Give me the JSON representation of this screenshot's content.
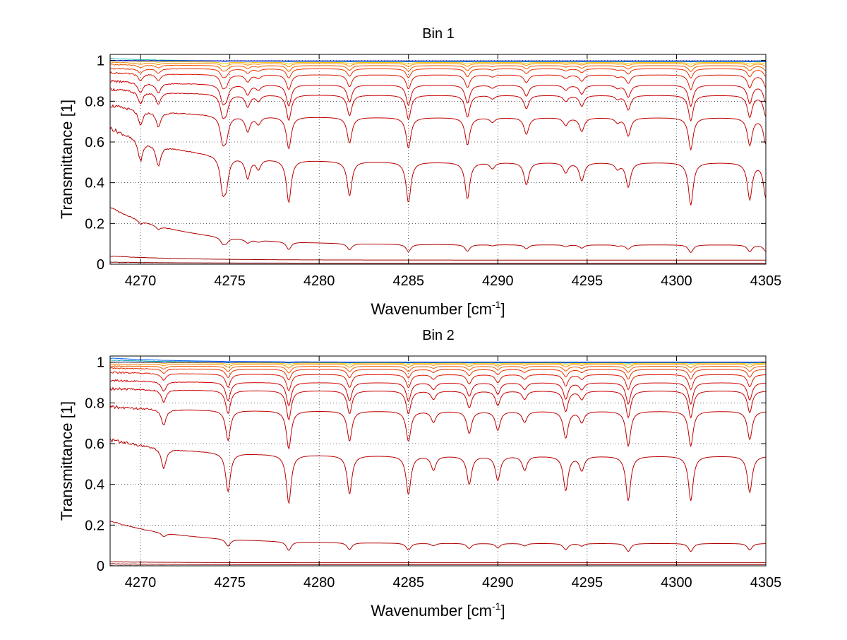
{
  "chart_data": [
    {
      "type": "line",
      "title": "Bin 1",
      "xlabel": "Wavenumber [cm",
      "xlabel_sup": "-1",
      "xlabel_end": "]",
      "ylabel": "Transmittance [1]",
      "xlim": [
        4268.3,
        4305
      ],
      "ylim": [
        0,
        1.03
      ],
      "xticks": [
        4270,
        4275,
        4280,
        4285,
        4290,
        4295,
        4300,
        4305
      ],
      "yticks": [
        0,
        0.2,
        0.4,
        0.6,
        0.8,
        1
      ],
      "ytick_labels": [
        "0",
        "0.2",
        "0.4",
        "0.6",
        "0.8",
        "1"
      ],
      "grid": true,
      "lines": [
        {
          "x": [
            4305,
            4276,
            4274.8,
            4274.6,
            4271,
            4270
          ],
          "depth": [
            0.17,
            0.1,
            0.12,
            0.15,
            0.1,
            0.1
          ]
        },
        {
          "x": [
            4278.3,
            4281.7,
            4285.0,
            4288.3,
            4291.6,
            4294.7,
            4297.3,
            4300.8,
            4304.1
          ],
          "depth": [
            0.21,
            0.17,
            0.2,
            0.18,
            0.11,
            0.09,
            0.12,
            0.21,
            0.18
          ]
        },
        {
          "x": [
            4276.6,
            4289.7,
            4293.8,
            4296.7
          ],
          "depth": [
            0.05,
            0.03,
            0.05,
            0.03
          ]
        }
      ],
      "series": [
        {
          "name": "s1",
          "baseline": 0.0,
          "color": "#7a0000",
          "start": 0.0,
          "lineScale": 0.0
        },
        {
          "name": "s2",
          "baseline": 0.005,
          "color": "#8b0000",
          "start": 0.01,
          "lineScale": 0.0
        },
        {
          "name": "s3",
          "baseline": 0.02,
          "color": "#a00000",
          "start": 0.04,
          "lineScale": 0.0
        },
        {
          "name": "s4",
          "baseline": 0.095,
          "color": "#b00000",
          "start": 0.28,
          "lineScale": 0.18
        },
        {
          "name": "s5",
          "baseline": 0.5,
          "color": "#b80000",
          "start": 0.67,
          "lineScale": 1.0
        },
        {
          "name": "s6",
          "baseline": 0.72,
          "color": "#c00000",
          "start": 0.78,
          "lineScale": 0.75
        },
        {
          "name": "s7",
          "baseline": 0.83,
          "color": "#c80000",
          "start": 0.86,
          "lineScale": 0.6
        },
        {
          "name": "s8",
          "baseline": 0.88,
          "color": "#d00000",
          "start": 0.9,
          "lineScale": 0.5
        },
        {
          "name": "s9",
          "baseline": 0.93,
          "color": "#dc1400",
          "start": 0.94,
          "lineScale": 0.35
        },
        {
          "name": "s10",
          "baseline": 0.96,
          "color": "#e63200",
          "start": 0.96,
          "lineScale": 0.22
        },
        {
          "name": "s11",
          "baseline": 0.975,
          "color": "#f05a00",
          "start": 0.98,
          "lineScale": 0.14
        },
        {
          "name": "s12",
          "baseline": 0.985,
          "color": "#f58c00",
          "start": 0.99,
          "lineScale": 0.08
        },
        {
          "name": "s13",
          "baseline": 0.99,
          "color": "#f5c800",
          "start": 1.0,
          "lineScale": 0.04
        },
        {
          "name": "s14",
          "baseline": 0.995,
          "color": "#00b4a0",
          "start": 1.01,
          "lineScale": 0.01
        },
        {
          "name": "s15",
          "baseline": 0.997,
          "color": "#0060ff",
          "start": 1.0,
          "lineScale": 0.005
        },
        {
          "name": "s16",
          "baseline": 0.998,
          "color": "#0000c8",
          "start": 1.0,
          "lineScale": 0.002
        }
      ]
    },
    {
      "type": "line",
      "title": "Bin 2",
      "xlabel": "Wavenumber [cm",
      "xlabel_sup": "-1",
      "xlabel_end": "]",
      "ylabel": "Transmittance [1]",
      "xlim": [
        4268.3,
        4305
      ],
      "ylim": [
        0,
        1.03
      ],
      "xticks": [
        4270,
        4275,
        4280,
        4285,
        4290,
        4295,
        4300,
        4305
      ],
      "yticks": [
        0,
        0.2,
        0.4,
        0.6,
        0.8,
        1
      ],
      "ytick_labels": [
        "0",
        "0.2",
        "0.4",
        "0.6",
        "0.8",
        "1"
      ],
      "grid": true,
      "lines": [
        {
          "x": [
            4274.9,
            4278.3,
            4281.7,
            4285.0,
            4288.4,
            4290.0,
            4293.8,
            4297.3,
            4300.8,
            4304.1
          ],
          "depth": [
            0.19,
            0.24,
            0.19,
            0.19,
            0.14,
            0.12,
            0.17,
            0.22,
            0.22,
            0.18
          ]
        },
        {
          "x": [
            4271.3,
            4286.4,
            4291.5,
            4294.7
          ],
          "depth": [
            0.1,
            0.07,
            0.07,
            0.07
          ]
        }
      ],
      "series": [
        {
          "name": "s1",
          "baseline": 0.0,
          "color": "#7a0000",
          "start": 0.0,
          "lineScale": 0.0
        },
        {
          "name": "s2",
          "baseline": 0.005,
          "color": "#8b0000",
          "start": 0.01,
          "lineScale": 0.0
        },
        {
          "name": "s3",
          "baseline": 0.015,
          "color": "#a00000",
          "start": 0.02,
          "lineScale": 0.0
        },
        {
          "name": "s4",
          "baseline": 0.11,
          "color": "#b00000",
          "start": 0.22,
          "lineScale": 0.18
        },
        {
          "name": "s5",
          "baseline": 0.54,
          "color": "#b80000",
          "start": 0.62,
          "lineScale": 1.0
        },
        {
          "name": "s6",
          "baseline": 0.76,
          "color": "#c00000",
          "start": 0.78,
          "lineScale": 0.78
        },
        {
          "name": "s7",
          "baseline": 0.86,
          "color": "#c80000",
          "start": 0.87,
          "lineScale": 0.6
        },
        {
          "name": "s8",
          "baseline": 0.9,
          "color": "#d00000",
          "start": 0.91,
          "lineScale": 0.48
        },
        {
          "name": "s9",
          "baseline": 0.94,
          "color": "#dc1400",
          "start": 0.95,
          "lineScale": 0.34
        },
        {
          "name": "s10",
          "baseline": 0.965,
          "color": "#e63200",
          "start": 0.97,
          "lineScale": 0.22
        },
        {
          "name": "s11",
          "baseline": 0.98,
          "color": "#f05a00",
          "start": 0.98,
          "lineScale": 0.14
        },
        {
          "name": "s12",
          "baseline": 0.99,
          "color": "#f58c00",
          "start": 0.99,
          "lineScale": 0.08
        },
        {
          "name": "s13",
          "baseline": 0.995,
          "color": "#f5c800",
          "start": 1.0,
          "lineScale": 0.04
        },
        {
          "name": "s14",
          "baseline": 0.998,
          "color": "#00b4a0",
          "start": 1.01,
          "lineScale": 0.015
        },
        {
          "name": "s15",
          "baseline": 1.0,
          "color": "#0060ff",
          "start": 1.02,
          "lineScale": 0.008
        },
        {
          "name": "s16",
          "baseline": 1.0,
          "color": "#0000c8",
          "start": 1.0,
          "lineScale": 0.004
        }
      ]
    }
  ]
}
